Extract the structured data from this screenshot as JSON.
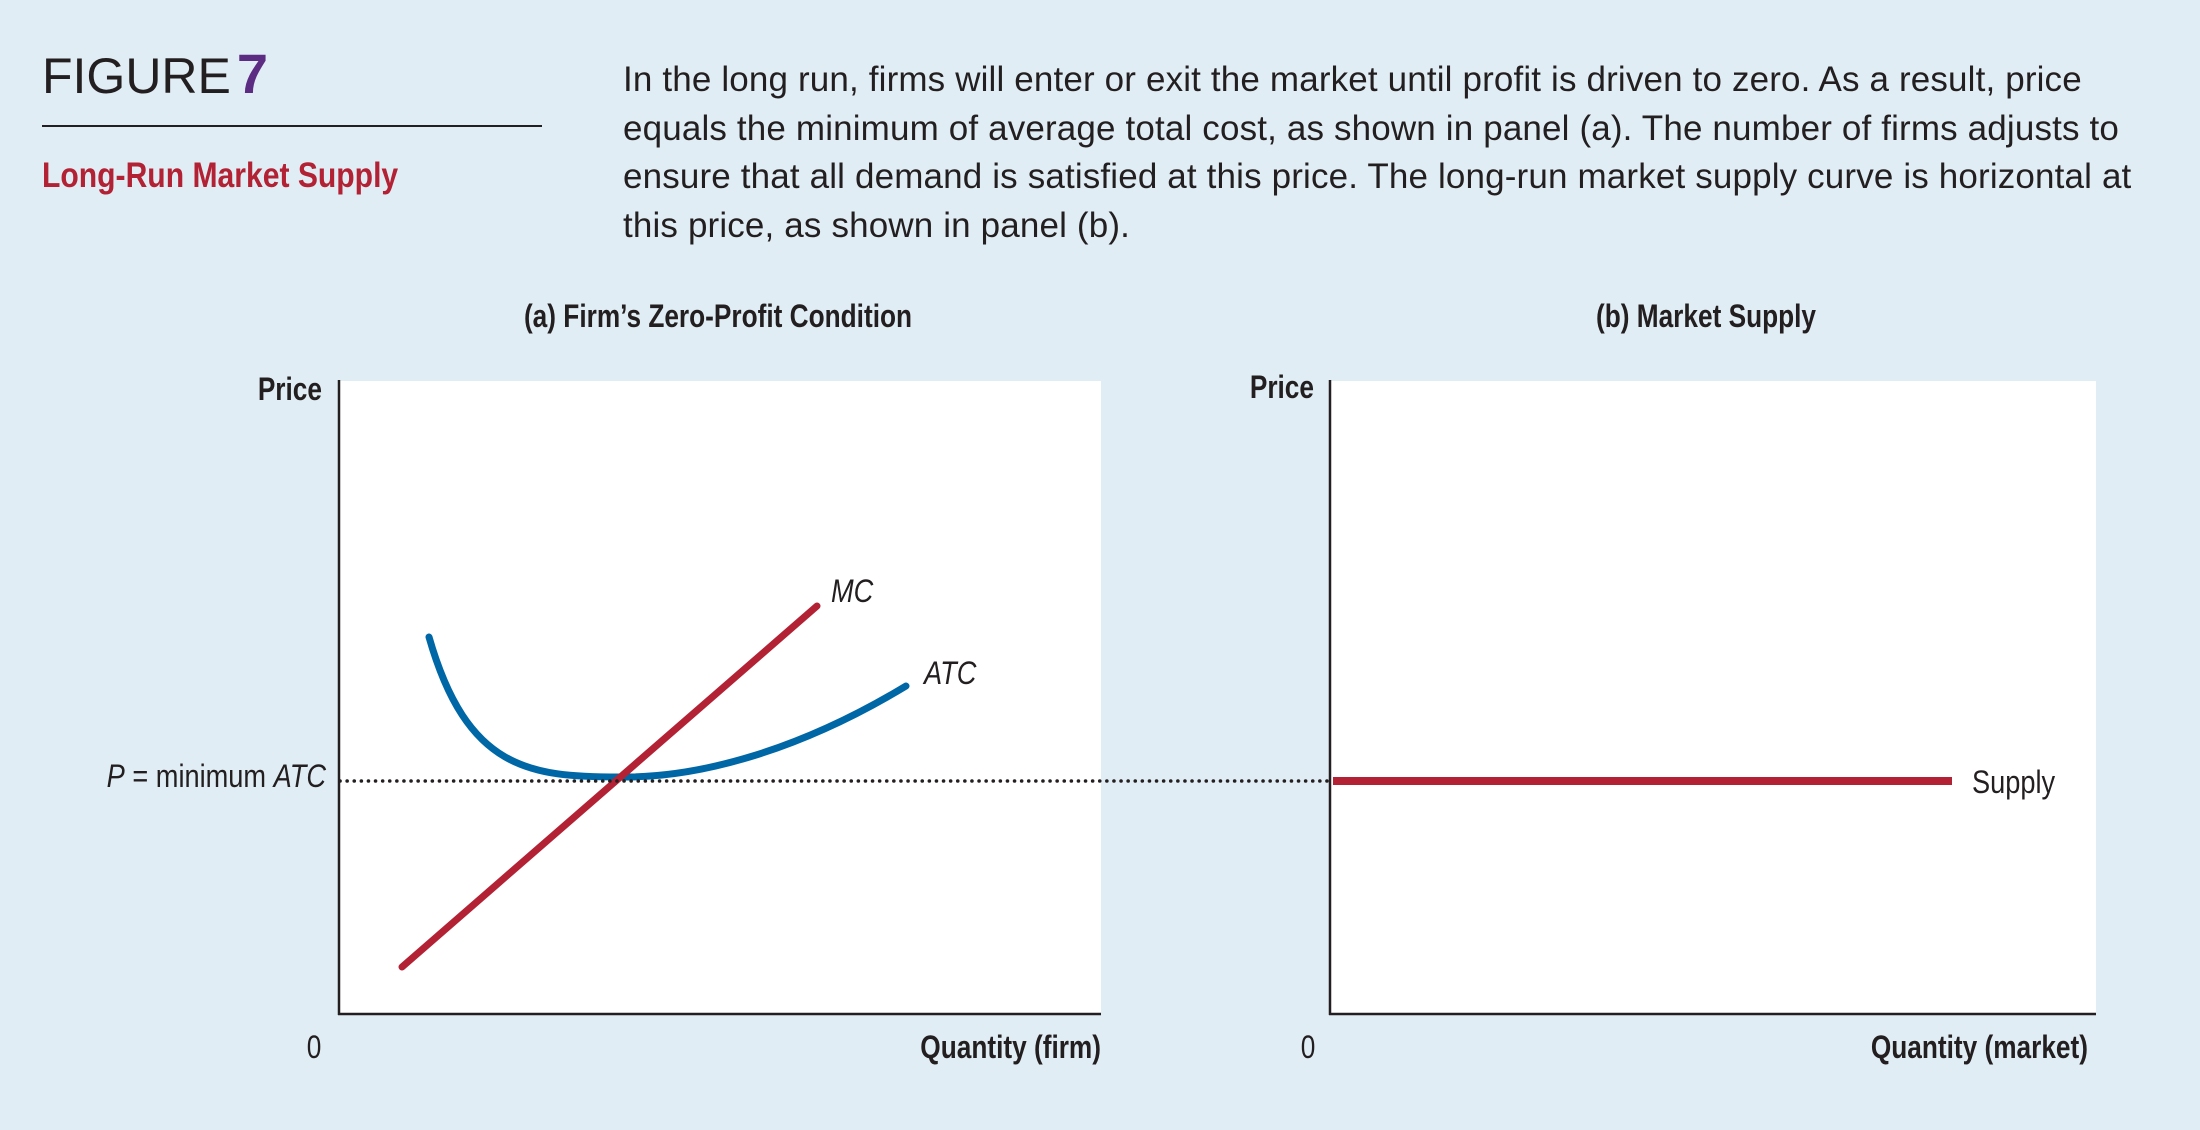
{
  "figure": {
    "label": "FIGURE",
    "number": "7",
    "title": "Long-Run Market Supply",
    "caption": "In the long run, firms will enter or exit the market until profit is driven to zero. As a result, price equals the minimum of average total cost, as shown in panel (a). The number of firms adjusts to ensure that all demand is satisfied at this price. The long-run market supply curve is horizontal at this price, as shown in panel (b)."
  },
  "panel_a": {
    "title": "(a) Firm’s Zero-Profit Condition",
    "ylabel": "Price",
    "xlabel": "Quantity (firm)",
    "origin": "0",
    "price_label_p": "P",
    "price_label_eq": " = minimum ",
    "price_label_atc": "ATC",
    "mc_label": "MC",
    "atc_label": "ATC"
  },
  "panel_b": {
    "title": "(b) Market Supply",
    "ylabel": "Price",
    "xlabel": "Quantity (market)",
    "origin": "0",
    "supply_label": "Supply"
  },
  "colors": {
    "background": "#e1edf4",
    "plot_area": "#ffffff",
    "mc_curve": "#b22234",
    "atc_curve": "#0067a6",
    "supply_curve": "#b22234",
    "figure_number": "#5b2c82",
    "figure_title": "#b22234"
  }
}
